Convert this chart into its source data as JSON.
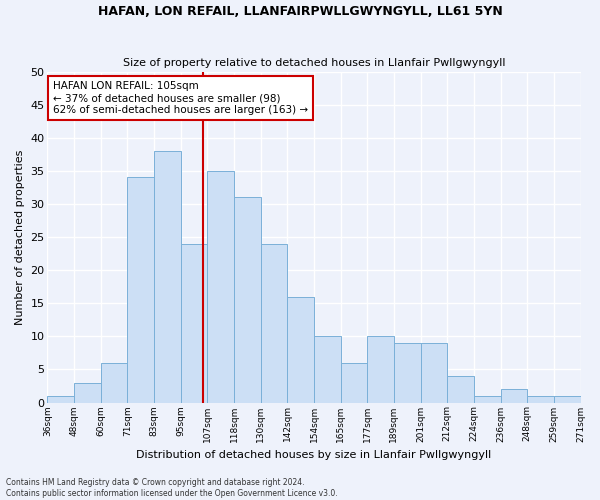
{
  "title": "HAFAN, LON REFAIL, LLANFAIRPWLLGWYNGYLL, LL61 5YN",
  "subtitle": "Size of property relative to detached houses in Llanfair Pwllgwyngyll",
  "xlabel": "Distribution of detached houses by size in Llanfair Pwllgwyngyll",
  "ylabel": "Number of detached properties",
  "bins": [
    "36sqm",
    "48sqm",
    "60sqm",
    "71sqm",
    "83sqm",
    "95sqm",
    "107sqm",
    "118sqm",
    "130sqm",
    "142sqm",
    "154sqm",
    "165sqm",
    "177sqm",
    "189sqm",
    "201sqm",
    "212sqm",
    "224sqm",
    "236sqm",
    "248sqm",
    "259sqm",
    "271sqm"
  ],
  "bar_values": [
    1,
    3,
    6,
    34,
    38,
    24,
    35,
    31,
    24,
    16,
    10,
    6,
    10,
    9,
    9,
    4,
    1,
    2,
    1,
    1
  ],
  "bar_color": "#ccdff5",
  "bar_edge_color": "#7ab0d8",
  "ylim": [
    0,
    50
  ],
  "yticks": [
    0,
    5,
    10,
    15,
    20,
    25,
    30,
    35,
    40,
    45,
    50
  ],
  "property_label": "HAFAN LON REFAIL: 105sqm",
  "pct_smaller": 37,
  "n_smaller": 98,
  "pct_larger_semi": 62,
  "n_larger_semi": 163,
  "vline_color": "#cc0000",
  "annotation_box_color": "#ffffff",
  "annotation_box_edge": "#cc0000",
  "background_color": "#eef2fb",
  "grid_color": "#ffffff",
  "footnote": "Contains HM Land Registry data © Crown copyright and database right 2024.\nContains public sector information licensed under the Open Government Licence v3.0."
}
